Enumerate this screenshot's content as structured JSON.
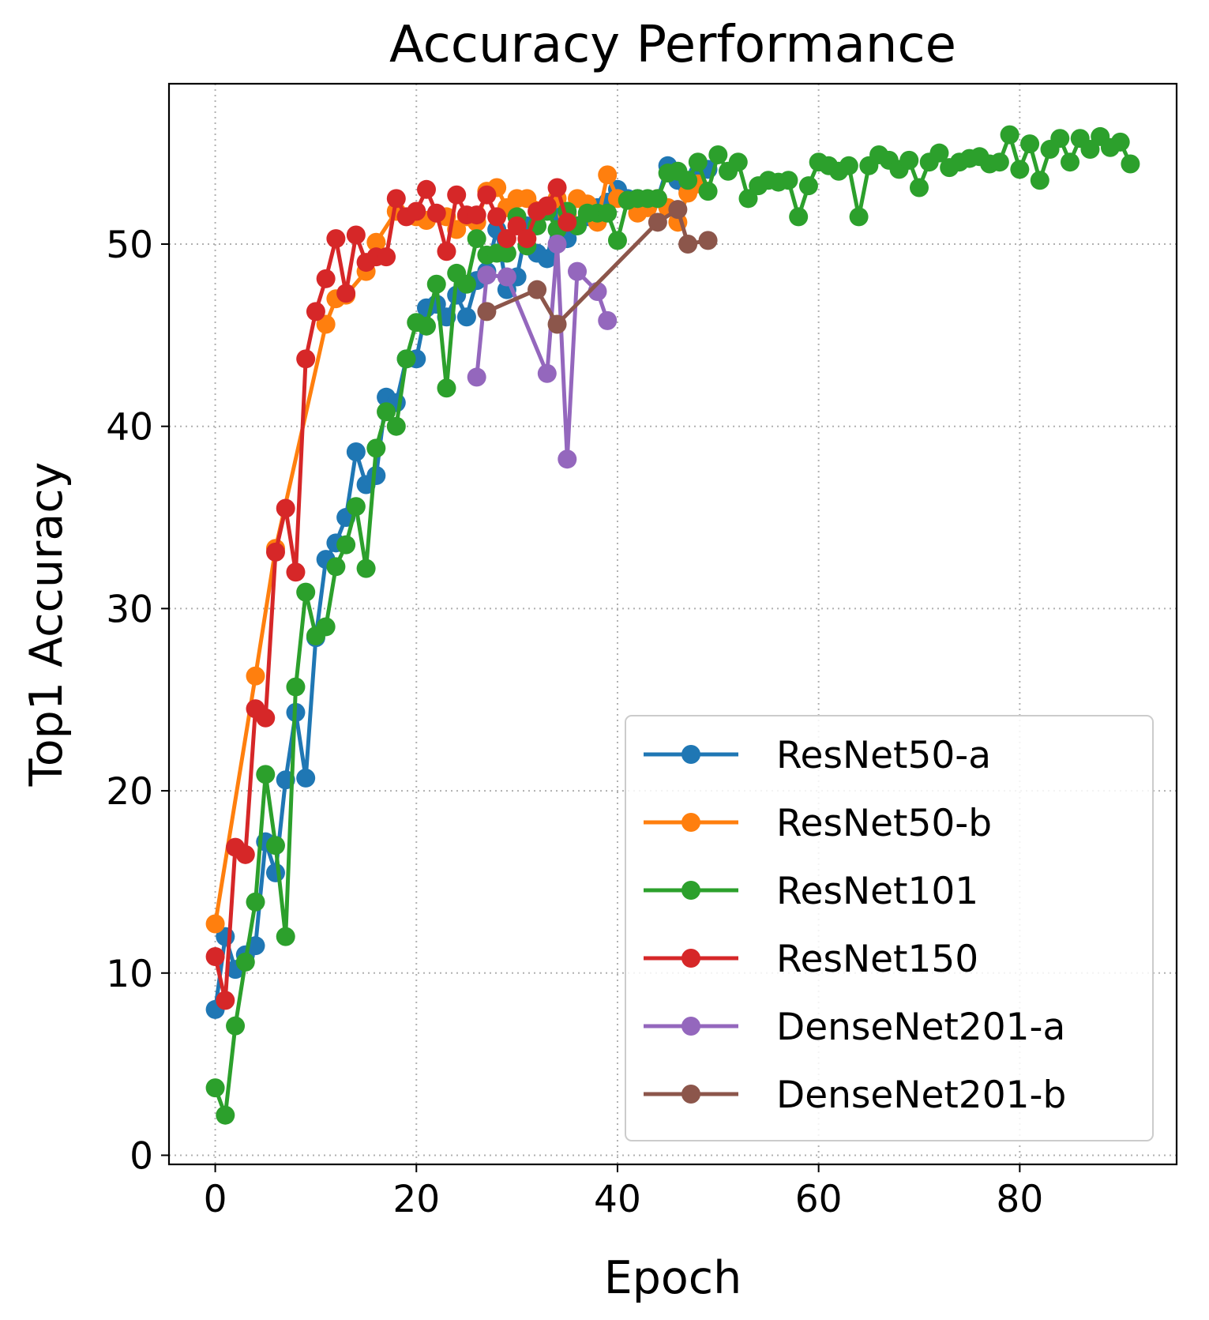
{
  "chart_data": {
    "type": "line",
    "title": "Accuracy Performance",
    "xlabel": "Epoch",
    "ylabel": "Top1 Accuracy",
    "xlim": [
      -4.6,
      95.6
    ],
    "ylim": [
      -0.5,
      58.8
    ],
    "xticks": [
      0,
      20,
      40,
      60,
      80
    ],
    "yticks": [
      0,
      10,
      20,
      30,
      40,
      50
    ],
    "grid": true,
    "legend_position": "lower right",
    "marker": "circle",
    "series": [
      {
        "name": "ResNet50-a",
        "color": "#1f77b4",
        "x": [
          0,
          1,
          2,
          3,
          4,
          5,
          6,
          7,
          8,
          9,
          10,
          11,
          12,
          13,
          14,
          15,
          16,
          17,
          18,
          19,
          20,
          21,
          22,
          23,
          24,
          25,
          26,
          27,
          28,
          29,
          30,
          31,
          32,
          33,
          34,
          35,
          36,
          37,
          38,
          39,
          40,
          41,
          42,
          43,
          44,
          45,
          46,
          47,
          48,
          49
        ],
        "y": [
          8.0,
          12.0,
          10.2,
          11.0,
          11.5,
          17.2,
          15.5,
          20.6,
          24.3,
          20.7,
          28.4,
          32.7,
          33.6,
          35.0,
          38.6,
          36.8,
          37.3,
          41.6,
          41.3,
          43.7,
          43.7,
          46.5,
          46.7,
          46.0,
          47.2,
          46.0,
          48.0,
          48.5,
          50.8,
          47.5,
          48.2,
          51.0,
          49.5,
          49.2,
          51.8,
          50.3,
          51.0,
          51.5,
          52.0,
          52.3,
          53.0,
          52.5,
          52.5,
          52.4,
          52.5,
          54.3,
          53.5,
          53.0,
          53.9,
          54.1
        ]
      },
      {
        "name": "ResNet50-b",
        "color": "#ff7f0e",
        "x": [
          0,
          4,
          6,
          11,
          12,
          13,
          15,
          16,
          18,
          20,
          21,
          23,
          24,
          25,
          26,
          27,
          28,
          29,
          30,
          31,
          33,
          34,
          35,
          36,
          37,
          38,
          39,
          40,
          42,
          43,
          44,
          45,
          46,
          47,
          48
        ],
        "y": [
          12.7,
          26.3,
          33.3,
          45.6,
          47.0,
          47.2,
          48.5,
          50.1,
          51.8,
          51.5,
          51.3,
          51.5,
          50.8,
          51.5,
          51.2,
          52.9,
          53.1,
          52.0,
          52.5,
          52.5,
          52.0,
          52.5,
          51.6,
          52.5,
          52.2,
          51.2,
          53.8,
          52.5,
          51.7,
          52.0,
          52.5,
          52.0,
          51.2,
          52.8,
          53.3
        ]
      },
      {
        "name": "ResNet101",
        "color": "#2ca02c",
        "x": [
          0,
          1,
          2,
          3,
          4,
          5,
          6,
          7,
          8,
          9,
          10,
          11,
          12,
          13,
          14,
          15,
          16,
          17,
          18,
          19,
          20,
          21,
          22,
          23,
          24,
          25,
          26,
          27,
          28,
          29,
          30,
          31,
          32,
          33,
          34,
          35,
          36,
          37,
          38,
          39,
          40,
          41,
          42,
          43,
          44,
          45,
          46,
          47,
          48,
          49,
          50,
          51,
          52,
          53,
          54,
          55,
          56,
          57,
          58,
          59,
          60,
          61,
          62,
          63,
          64,
          65,
          66,
          67,
          68,
          69,
          70,
          71,
          72,
          73,
          74,
          75,
          76,
          77,
          78,
          79,
          80,
          81,
          82,
          83,
          84,
          85,
          86,
          87,
          88,
          89,
          90,
          91
        ],
        "y": [
          3.7,
          2.2,
          7.1,
          10.6,
          13.9,
          20.9,
          17.0,
          12.0,
          25.7,
          30.9,
          28.5,
          29.0,
          32.3,
          33.5,
          35.6,
          32.2,
          38.8,
          40.8,
          40.0,
          43.7,
          45.7,
          45.5,
          47.8,
          42.1,
          48.4,
          47.8,
          50.3,
          49.4,
          49.5,
          49.5,
          51.5,
          49.9,
          51.0,
          51.8,
          50.8,
          51.8,
          51.0,
          51.7,
          51.7,
          51.7,
          50.2,
          52.4,
          52.5,
          52.5,
          52.5,
          53.9,
          54.0,
          53.5,
          54.5,
          52.9,
          54.9,
          54.0,
          54.5,
          52.5,
          53.2,
          53.5,
          53.4,
          53.5,
          51.5,
          53.2,
          54.5,
          54.3,
          54.0,
          54.3,
          51.5,
          54.3,
          54.9,
          54.6,
          54.1,
          54.6,
          53.1,
          54.5,
          55.0,
          54.2,
          54.5,
          54.7,
          54.8,
          54.4,
          54.5,
          56.0,
          54.1,
          55.5,
          53.5,
          55.2,
          55.8,
          54.5,
          55.8,
          55.2,
          55.9,
          55.3,
          55.6,
          54.4
        ]
      },
      {
        "name": "ResNet150",
        "color": "#d62728",
        "x": [
          0,
          1,
          2,
          3,
          4,
          5,
          6,
          7,
          8,
          9,
          10,
          11,
          12,
          13,
          14,
          15,
          16,
          17,
          18,
          19,
          20,
          21,
          22,
          23,
          24,
          25,
          26,
          27,
          28,
          29,
          30,
          31,
          32,
          33,
          34,
          35
        ],
        "y": [
          10.9,
          8.5,
          16.9,
          16.5,
          24.5,
          24.0,
          33.1,
          35.5,
          32.0,
          43.7,
          46.3,
          48.1,
          50.3,
          47.3,
          50.5,
          49.0,
          49.3,
          49.3,
          52.5,
          51.5,
          51.8,
          53.0,
          51.7,
          49.6,
          52.7,
          51.6,
          51.6,
          52.7,
          51.5,
          50.3,
          51.0,
          50.3,
          51.8,
          52.1,
          53.1,
          51.2
        ]
      },
      {
        "name": "DenseNet201-a",
        "color": "#9467bd",
        "x": [
          26,
          27,
          29,
          33,
          34,
          35,
          36,
          38,
          39
        ],
        "y": [
          42.7,
          48.3,
          48.2,
          42.9,
          50.0,
          38.2,
          48.5,
          47.4,
          45.8
        ]
      },
      {
        "name": "DenseNet201-b",
        "color": "#8c564b",
        "x": [
          27,
          32,
          34,
          44,
          46,
          47,
          49
        ],
        "y": [
          46.3,
          47.5,
          45.6,
          51.2,
          51.9,
          50.0,
          50.2
        ]
      }
    ]
  }
}
